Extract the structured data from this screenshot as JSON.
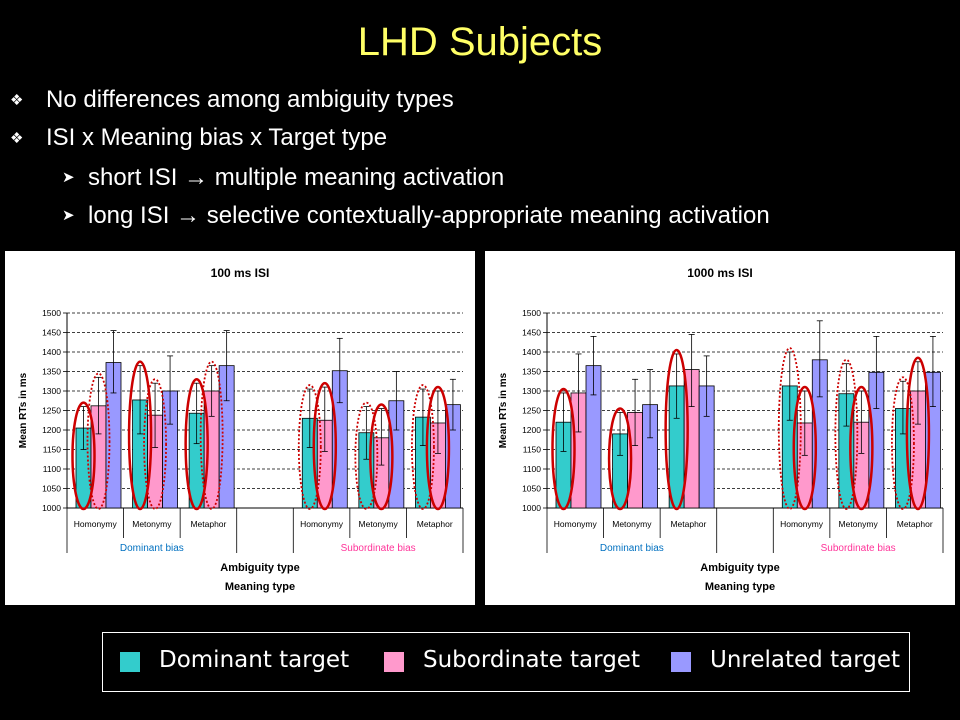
{
  "slide": {
    "title": "LHD Subjects",
    "bullets": [
      {
        "level": 1,
        "text": "No differences among ambiguity types"
      },
      {
        "level": 1,
        "text": "ISI x Meaning bias x Target type"
      },
      {
        "level": 2,
        "text": "short ISI → multiple meaning activation"
      },
      {
        "level": 2,
        "text": "long ISI → selective contextually-appropriate meaning activation"
      }
    ],
    "bullet_icons": {
      "level1": "diamond-bullet-icon",
      "level2": "arrowhead-bullet-icon"
    }
  },
  "legend": [
    {
      "label": "Dominant target",
      "color": "#33cccc"
    },
    {
      "label": "Subordinate target",
      "color": "#ff99cc"
    },
    {
      "label": "Unrelated target",
      "color": "#9999ff"
    }
  ],
  "chart_data": [
    {
      "type": "bar",
      "title": "100 ms ISI",
      "ylabel": "Mean RTs in ms",
      "xlabel": "Ambiguity type",
      "xlabel2": "Meaning type",
      "ylim": [
        1000,
        1500
      ],
      "yticks": [
        1000,
        1050,
        1100,
        1150,
        1200,
        1250,
        1300,
        1350,
        1400,
        1450,
        1500
      ],
      "grid": true,
      "groups": [
        {
          "label": "Dominant bias",
          "color": "#0070c0",
          "categories": [
            "Homonymy",
            "Metonymy",
            "Metaphor"
          ]
        },
        {
          "label": "Subordinate bias",
          "color": "#ff3399",
          "categories": [
            "Homonymy",
            "Metonymy",
            "Metaphor"
          ]
        }
      ],
      "series": [
        {
          "name": "Dominant target",
          "color": "#33cccc",
          "values": [
            1205,
            1277,
            1243,
            1230,
            1193,
            1233
          ],
          "error_high": [
            1260,
            1365,
            1320,
            1305,
            1260,
            1305
          ],
          "error_low": [
            1150,
            1190,
            1165,
            1155,
            1125,
            1160
          ]
        },
        {
          "name": "Subordinate target",
          "color": "#ff99cc",
          "values": [
            1262,
            1238,
            1300,
            1225,
            1180,
            1218
          ],
          "error_high": [
            1335,
            1320,
            1365,
            1310,
            1255,
            1300
          ],
          "error_low": [
            1190,
            1155,
            1235,
            1145,
            1110,
            1140
          ]
        },
        {
          "name": "Unrelated target",
          "color": "#9999ff",
          "values": [
            1373,
            1300,
            1365,
            1352,
            1275,
            1265
          ],
          "error_high": [
            1455,
            1390,
            1455,
            1435,
            1350,
            1330
          ],
          "error_low": [
            1295,
            1215,
            1275,
            1270,
            1200,
            1200
          ]
        }
      ],
      "annotations": [
        {
          "group_index": 0,
          "series_index": 0,
          "style": "solid"
        },
        {
          "group_index": 0,
          "series_index": 1,
          "style": "dotted"
        },
        {
          "group_index": 1,
          "series_index": 0,
          "style": "solid"
        },
        {
          "group_index": 1,
          "series_index": 1,
          "style": "dotted"
        },
        {
          "group_index": 2,
          "series_index": 0,
          "style": "solid"
        },
        {
          "group_index": 2,
          "series_index": 1,
          "style": "dotted"
        },
        {
          "group_index": 3,
          "series_index": 0,
          "style": "dotted"
        },
        {
          "group_index": 3,
          "series_index": 1,
          "style": "solid"
        },
        {
          "group_index": 4,
          "series_index": 0,
          "style": "dotted"
        },
        {
          "group_index": 4,
          "series_index": 1,
          "style": "solid"
        },
        {
          "group_index": 5,
          "series_index": 0,
          "style": "dotted"
        },
        {
          "group_index": 5,
          "series_index": 1,
          "style": "solid"
        }
      ]
    },
    {
      "type": "bar",
      "title": "1000 ms ISI",
      "ylabel": "Mean RTs in ms",
      "xlabel": "Ambiguity type",
      "xlabel2": "Meaning type",
      "ylim": [
        1000,
        1500
      ],
      "yticks": [
        1000,
        1050,
        1100,
        1150,
        1200,
        1250,
        1300,
        1350,
        1400,
        1450,
        1500
      ],
      "grid": true,
      "groups": [
        {
          "label": "Dominant bias",
          "color": "#0070c0",
          "categories": [
            "Homonymy",
            "Metonymy",
            "Metaphor"
          ]
        },
        {
          "label": "Subordinate bias",
          "color": "#ff3399",
          "categories": [
            "Homonymy",
            "Metonymy",
            "Metaphor"
          ]
        }
      ],
      "series": [
        {
          "name": "Dominant target",
          "color": "#33cccc",
          "values": [
            1220,
            1190,
            1313,
            1313,
            1293,
            1255
          ],
          "error_high": [
            1295,
            1245,
            1395,
            1400,
            1370,
            1325
          ],
          "error_low": [
            1145,
            1135,
            1230,
            1225,
            1210,
            1190
          ]
        },
        {
          "name": "Subordinate target",
          "color": "#ff99cc",
          "values": [
            1295,
            1245,
            1355,
            1218,
            1220,
            1300
          ],
          "error_high": [
            1395,
            1330,
            1445,
            1300,
            1300,
            1375
          ],
          "error_low": [
            1195,
            1160,
            1260,
            1135,
            1140,
            1215
          ]
        },
        {
          "name": "Unrelated target",
          "color": "#9999ff",
          "values": [
            1365,
            1265,
            1313,
            1380,
            1348,
            1348
          ],
          "error_high": [
            1440,
            1355,
            1390,
            1480,
            1440,
            1440
          ],
          "error_low": [
            1290,
            1180,
            1235,
            1285,
            1255,
            1260
          ]
        }
      ],
      "annotations": [
        {
          "group_index": 0,
          "series_index": 0,
          "style": "solid"
        },
        {
          "group_index": 1,
          "series_index": 0,
          "style": "solid"
        },
        {
          "group_index": 2,
          "series_index": 0,
          "style": "solid"
        },
        {
          "group_index": 3,
          "series_index": 0,
          "style": "dotted"
        },
        {
          "group_index": 3,
          "series_index": 1,
          "style": "solid"
        },
        {
          "group_index": 4,
          "series_index": 0,
          "style": "dotted"
        },
        {
          "group_index": 4,
          "series_index": 1,
          "style": "solid"
        },
        {
          "group_index": 5,
          "series_index": 0,
          "style": "dotted"
        },
        {
          "group_index": 5,
          "series_index": 1,
          "style": "solid"
        }
      ]
    }
  ]
}
